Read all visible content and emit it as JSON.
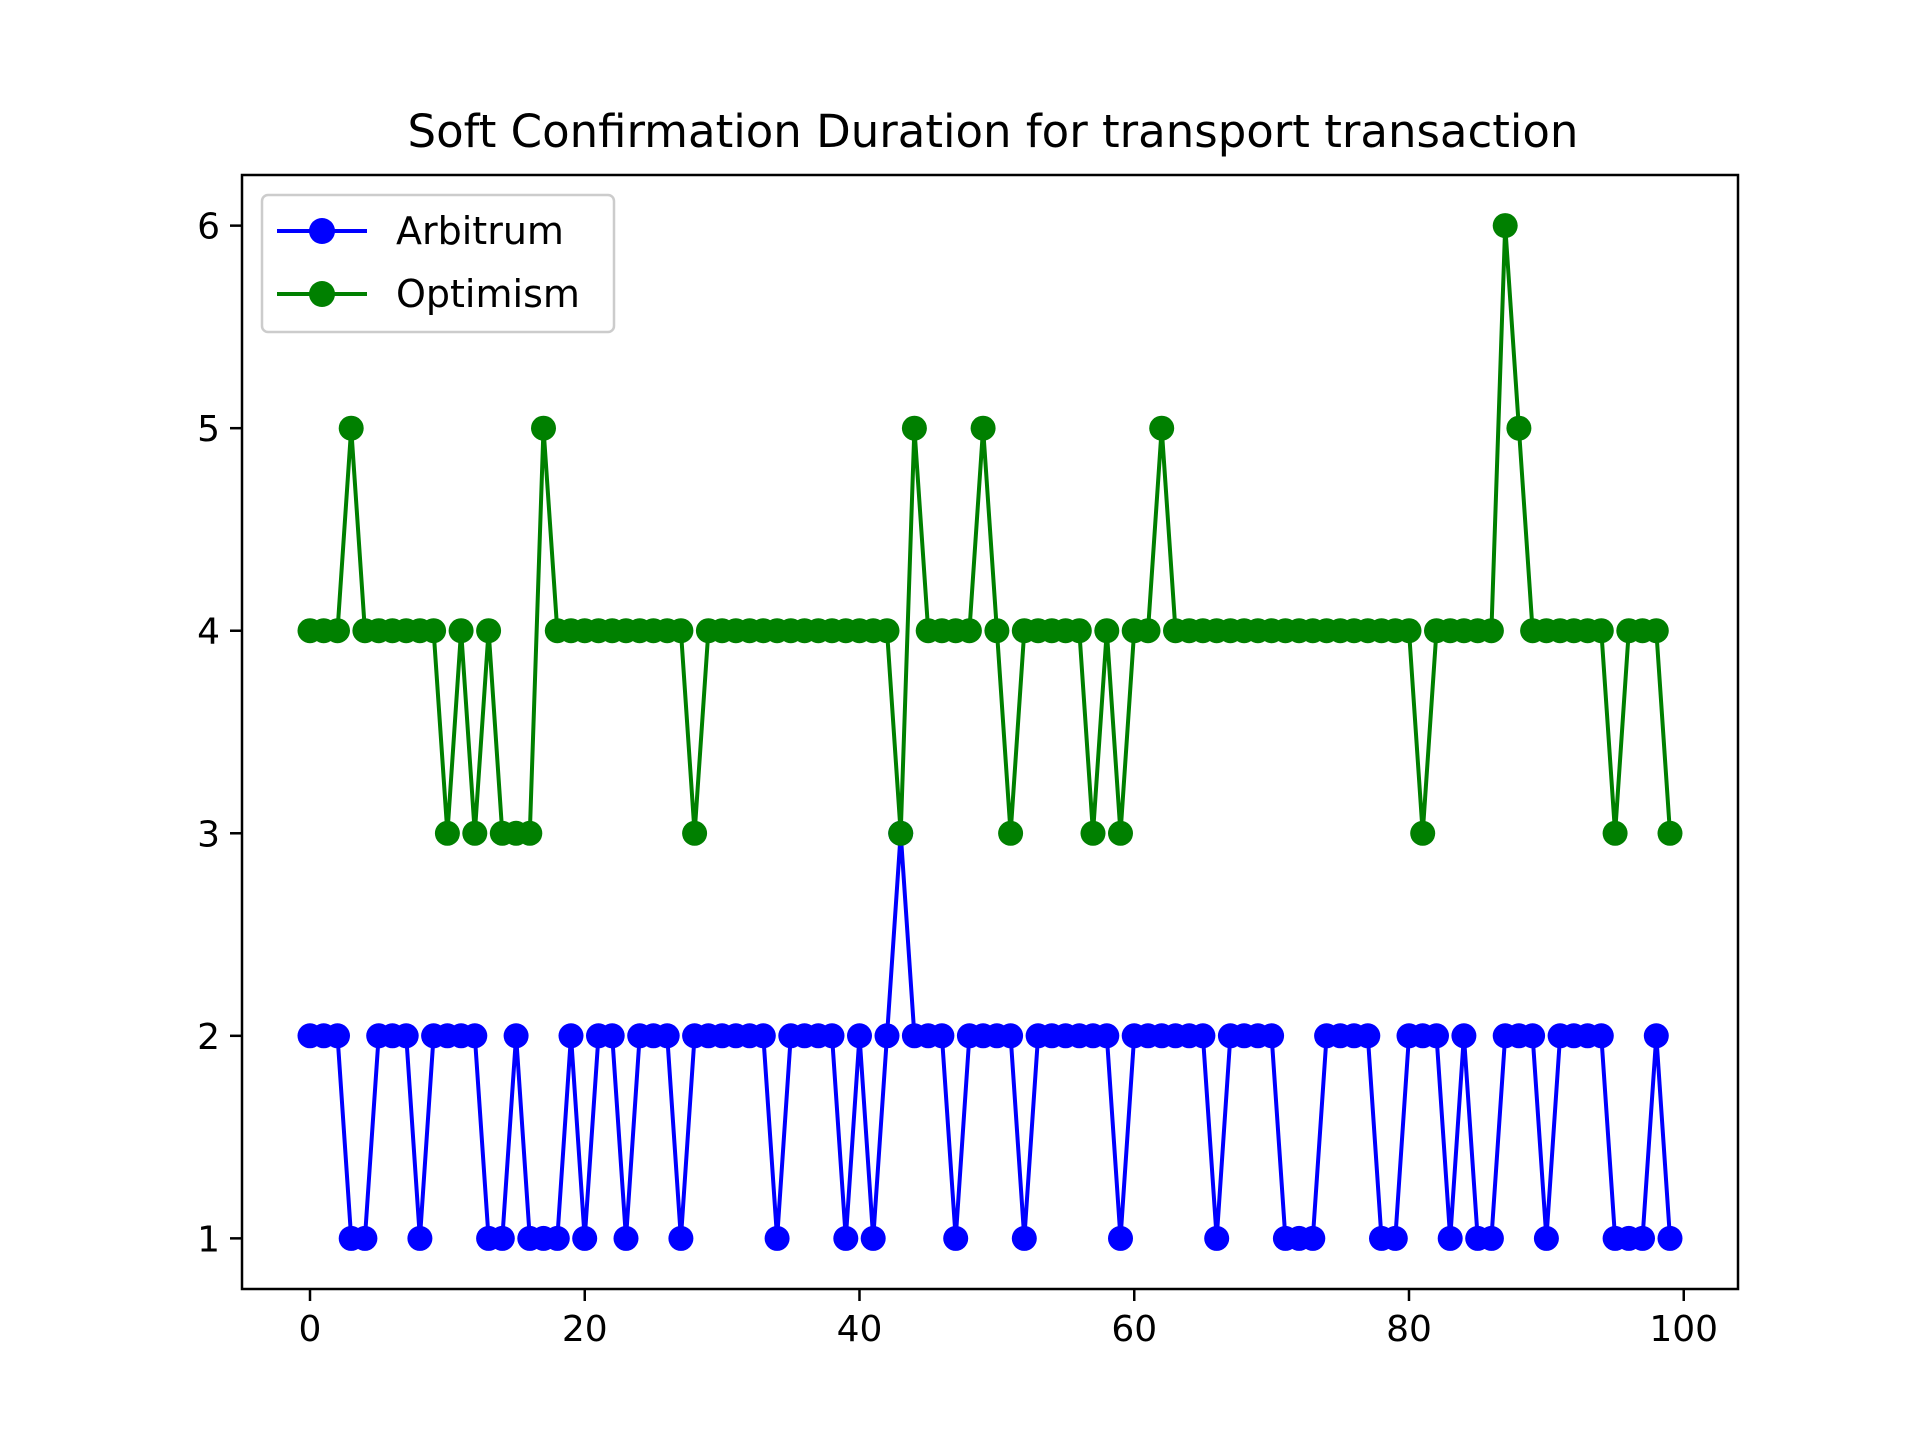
{
  "chart_data": {
    "type": "line",
    "title": "Soft Confirmation Duration for transport transaction",
    "xlabel": "",
    "ylabel": "",
    "xlim": [
      -4.95,
      103.95
    ],
    "ylim": [
      0.75,
      6.25
    ],
    "xticks": [
      0,
      20,
      40,
      60,
      80,
      100
    ],
    "yticks": [
      1,
      2,
      3,
      4,
      5,
      6
    ],
    "grid": false,
    "legend_position": "top-left",
    "x": [
      0,
      1,
      2,
      3,
      4,
      5,
      6,
      7,
      8,
      9,
      10,
      11,
      12,
      13,
      14,
      15,
      16,
      17,
      18,
      19,
      20,
      21,
      22,
      23,
      24,
      25,
      26,
      27,
      28,
      29,
      30,
      31,
      32,
      33,
      34,
      35,
      36,
      37,
      38,
      39,
      40,
      41,
      42,
      43,
      44,
      45,
      46,
      47,
      48,
      49,
      50,
      51,
      52,
      53,
      54,
      55,
      56,
      57,
      58,
      59,
      60,
      61,
      62,
      63,
      64,
      65,
      66,
      67,
      68,
      69,
      70,
      71,
      72,
      73,
      74,
      75,
      76,
      77,
      78,
      79,
      80,
      81,
      82,
      83,
      84,
      85,
      86,
      87,
      88,
      89,
      90,
      91,
      92,
      93,
      94,
      95,
      96,
      97,
      98,
      99
    ],
    "series": [
      {
        "name": "Arbitrum",
        "color": "#0000ff",
        "values": [
          2,
          2,
          2,
          1,
          1,
          2,
          2,
          2,
          1,
          2,
          2,
          2,
          2,
          1,
          1,
          2,
          1,
          1,
          1,
          2,
          1,
          2,
          2,
          1,
          2,
          2,
          2,
          1,
          2,
          2,
          2,
          2,
          2,
          2,
          1,
          2,
          2,
          2,
          2,
          1,
          2,
          1,
          2,
          3,
          2,
          2,
          2,
          1,
          2,
          2,
          2,
          2,
          1,
          2,
          2,
          2,
          2,
          2,
          2,
          1,
          2,
          2,
          2,
          2,
          2,
          2,
          1,
          2,
          2,
          2,
          2,
          1,
          1,
          1,
          2,
          2,
          2,
          2,
          1,
          1,
          2,
          2,
          2,
          1,
          2,
          1,
          1,
          2,
          2,
          2,
          1,
          2,
          2,
          2,
          2,
          1,
          1,
          1,
          2,
          1
        ]
      },
      {
        "name": "Optimism",
        "color": "#008000",
        "values": [
          4,
          4,
          4,
          5,
          4,
          4,
          4,
          4,
          4,
          4,
          3,
          4,
          3,
          4,
          3,
          3,
          3,
          5,
          4,
          4,
          4,
          4,
          4,
          4,
          4,
          4,
          4,
          4,
          3,
          4,
          4,
          4,
          4,
          4,
          4,
          4,
          4,
          4,
          4,
          4,
          4,
          4,
          4,
          3,
          5,
          4,
          4,
          4,
          4,
          5,
          4,
          3,
          4,
          4,
          4,
          4,
          4,
          3,
          4,
          3,
          4,
          4,
          5,
          4,
          4,
          4,
          4,
          4,
          4,
          4,
          4,
          4,
          4,
          4,
          4,
          4,
          4,
          4,
          4,
          4,
          4,
          3,
          4,
          4,
          4,
          4,
          4,
          6,
          5,
          4,
          4,
          4,
          4,
          4,
          4,
          3,
          4,
          4,
          4,
          3
        ]
      }
    ]
  }
}
